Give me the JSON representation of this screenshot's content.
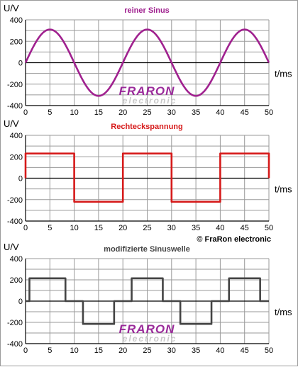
{
  "colors": {
    "sine": "#a0218f",
    "square": "#d61a1a",
    "modified": "#444444",
    "grid": "#9a9a9a"
  },
  "watermark": {
    "word": "FRARON",
    "sub": "electronic"
  },
  "copyright": "© FraRon electronic",
  "chart_data": [
    {
      "type": "line",
      "title": "reiner Sinus",
      "ylabel": "U/V",
      "xlabel": "t/ms",
      "xlim": [
        0,
        50
      ],
      "ylim": [
        -400,
        400
      ],
      "xticks": [
        0,
        5,
        10,
        15,
        20,
        25,
        30,
        35,
        40,
        45,
        50
      ],
      "yticks": [
        400,
        200,
        0,
        -200,
        -400
      ],
      "series": [
        {
          "period": 20,
          "amplitude": 310,
          "x": [
            0,
            5,
            10,
            15,
            20,
            25,
            30,
            35,
            40,
            45,
            50
          ],
          "values": [
            0,
            310,
            0,
            -310,
            0,
            310,
            0,
            -310,
            0,
            310,
            0
          ]
        }
      ]
    },
    {
      "type": "line",
      "title": "Rechteckspannung",
      "ylabel": "U/V",
      "xlabel": "t/ms",
      "xlim": [
        0,
        50
      ],
      "ylim": [
        -400,
        400
      ],
      "xticks": [
        0,
        5,
        10,
        15,
        20,
        25,
        30,
        35,
        40,
        45,
        50
      ],
      "yticks": [
        400,
        200,
        0,
        -200,
        -400
      ],
      "series": [
        {
          "x": [
            0,
            0,
            10,
            10,
            20,
            20,
            30,
            30,
            40,
            40,
            50,
            50
          ],
          "values": [
            0,
            230,
            230,
            -220,
            -220,
            230,
            230,
            -220,
            -220,
            230,
            230,
            0
          ]
        }
      ]
    },
    {
      "type": "line",
      "title": "modifizierte Sinuswelle",
      "ylabel": "U/V",
      "xlabel": "t/ms",
      "xlim": [
        0,
        50
      ],
      "ylim": [
        -400,
        400
      ],
      "xticks": [
        0,
        5,
        10,
        15,
        20,
        25,
        30,
        35,
        40,
        45,
        50
      ],
      "yticks": [
        400,
        200,
        0,
        -200,
        -400
      ],
      "series": [
        {
          "x": [
            0,
            0.8,
            0.8,
            8.2,
            8.2,
            11.8,
            11.8,
            18.2,
            18.2,
            21.8,
            21.8,
            28.2,
            28.2,
            31.8,
            31.8,
            38.2,
            38.2,
            41.8,
            41.8,
            48.2,
            48.2,
            50
          ],
          "values": [
            0,
            0,
            215,
            215,
            0,
            0,
            -215,
            -215,
            0,
            0,
            215,
            215,
            0,
            0,
            -215,
            -215,
            0,
            0,
            215,
            215,
            0,
            0
          ]
        }
      ]
    }
  ]
}
